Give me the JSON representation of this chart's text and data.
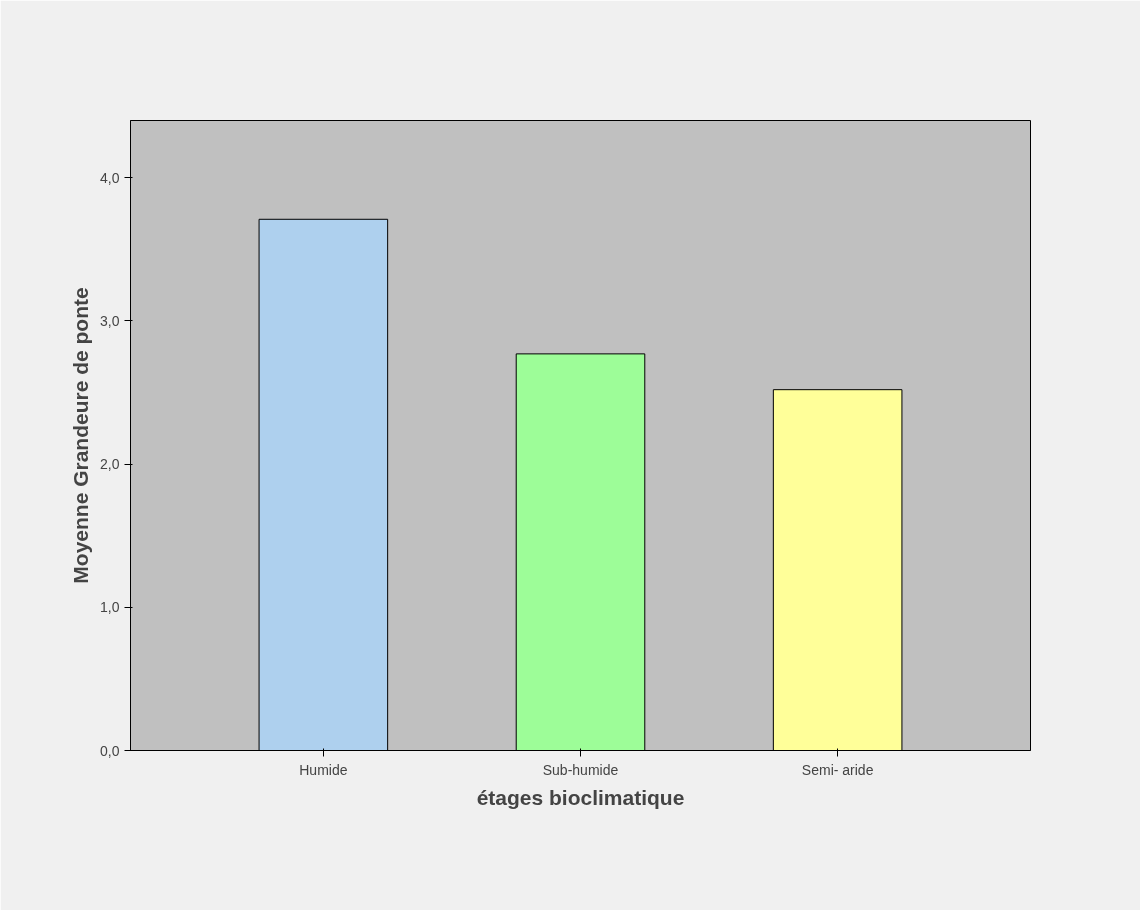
{
  "chart_data": {
    "type": "bar",
    "xlabel": "étages bioclimatique",
    "ylabel": "Moyenne Grandeure de ponte",
    "categories": [
      "Humide",
      "Sub-humide",
      "Semi- aride"
    ],
    "values": [
      3.71,
      2.77,
      2.52
    ],
    "colors": [
      "#aed0ee",
      "#9dfd98",
      "#ffff99"
    ],
    "ylim": [
      0,
      4.4
    ],
    "yticks": [
      {
        "value": 0,
        "label": "0,0"
      },
      {
        "value": 1,
        "label": "1,0"
      },
      {
        "value": 2,
        "label": "2,0"
      },
      {
        "value": 3,
        "label": "3,0"
      },
      {
        "value": 4,
        "label": "4,0"
      }
    ],
    "grid": false
  }
}
